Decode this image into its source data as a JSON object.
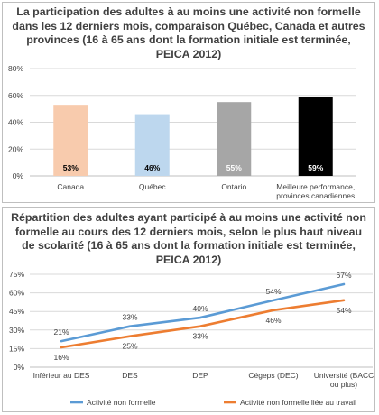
{
  "chart_data": [
    {
      "type": "bar",
      "title": "La participation des adultes à au moins une activité non formelle dans les 12 derniers mois, comparaison Québec, Canada et autres provinces (16 à 65 ans dont la formation initiale est terminée, PEICA 2012)",
      "categories": [
        "Canada",
        "Québec",
        "Ontario",
        "Meilleure performance, provinces canadiennes"
      ],
      "values": [
        53,
        46,
        55,
        59
      ],
      "value_labels": [
        "53%",
        "46%",
        "55%",
        "59%"
      ],
      "bar_colors": [
        "#f8cbad",
        "#bdd7ee",
        "#a6a6a6",
        "#000000"
      ],
      "label_colors": [
        "#000000",
        "#000000",
        "#ffffff",
        "#ffffff"
      ],
      "yticks": [
        "0%",
        "20%",
        "40%",
        "60%",
        "80%"
      ],
      "ylim": [
        0,
        80
      ],
      "grid": true
    },
    {
      "type": "line",
      "title": "Répartition des adultes ayant participé à au moins une activité non formelle au cours des 12 derniers mois, selon le plus haut niveau de scolarité (16 à 65 ans dont la formation initiale est terminée, PEICA 2012)",
      "categories": [
        "Inférieur au DES",
        "DES",
        "DEP",
        "Cégeps (DEC)",
        "Université (BACC ou plus)"
      ],
      "series": [
        {
          "name": "Activité non formelle",
          "color": "#5b9bd5",
          "values": [
            21,
            33,
            40,
            54,
            67
          ],
          "labels": [
            "21%",
            "33%",
            "40%",
            "54%",
            "67%"
          ]
        },
        {
          "name": "Activité non formelle liée au travail",
          "color": "#ed7d31",
          "values": [
            16,
            25,
            33,
            46,
            54
          ],
          "labels": [
            "16%",
            "25%",
            "33%",
            "46%",
            "54%"
          ]
        }
      ],
      "yticks": [
        "0%",
        "15%",
        "30%",
        "45%",
        "60%",
        "75%"
      ],
      "ylim": [
        0,
        75
      ],
      "grid": true,
      "legend_position": "bottom"
    }
  ]
}
